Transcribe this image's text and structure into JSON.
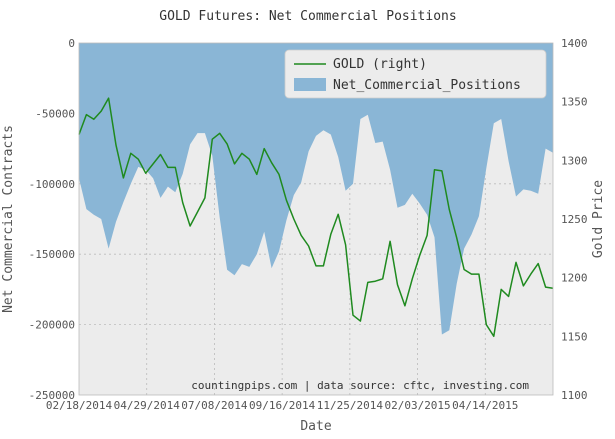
{
  "chart_data": {
    "type": "area",
    "title": "GOLD Futures: Net Commercial Positions",
    "xlabel": "Date",
    "ylabel_left": "Net Commercial Contracts",
    "ylabel_right": "Gold Price",
    "credit": "countingpips.com | data source: cftc, investing.com",
    "grid": true,
    "legend_position": "top-right",
    "x_tick_labels": [
      "02/18/2014",
      "04/29/2014",
      "07/08/2014",
      "09/16/2014",
      "11/25/2014",
      "02/03/2015",
      "04/14/2015"
    ],
    "x_range": [
      "2014-02-18",
      "2015-05-12"
    ],
    "y_left": {
      "min": -250000,
      "max": 0,
      "ticks": [
        0,
        -50000,
        -100000,
        -150000,
        -200000,
        -250000
      ]
    },
    "y_right": {
      "min": 1100,
      "max": 1400,
      "ticks": [
        1400,
        1350,
        1300,
        1250,
        1200,
        1150,
        1100
      ]
    },
    "series": [
      {
        "name": "GOLD (right)",
        "kind": "line",
        "axis": "right",
        "color": "#1f8a1f",
        "points": [
          [
            "2014-02-18",
            1322
          ],
          [
            "2014-02-25",
            1339
          ],
          [
            "2014-03-04",
            1335
          ],
          [
            "2014-03-11",
            1342
          ],
          [
            "2014-03-18",
            1353
          ],
          [
            "2014-03-25",
            1313
          ],
          [
            "2014-04-01",
            1285
          ],
          [
            "2014-04-08",
            1306
          ],
          [
            "2014-04-15",
            1301
          ],
          [
            "2014-04-22",
            1289
          ],
          [
            "2014-04-29",
            1297
          ],
          [
            "2014-05-06",
            1305
          ],
          [
            "2014-05-13",
            1294
          ],
          [
            "2014-05-20",
            1294
          ],
          [
            "2014-05-27",
            1264
          ],
          [
            "2014-06-03",
            1244
          ],
          [
            "2014-06-10",
            1256
          ],
          [
            "2014-06-17",
            1268
          ],
          [
            "2014-06-24",
            1318
          ],
          [
            "2014-07-01",
            1323
          ],
          [
            "2014-07-08",
            1314
          ],
          [
            "2014-07-15",
            1297
          ],
          [
            "2014-07-22",
            1306
          ],
          [
            "2014-07-29",
            1301
          ],
          [
            "2014-08-05",
            1288
          ],
          [
            "2014-08-12",
            1310
          ],
          [
            "2014-08-19",
            1298
          ],
          [
            "2014-08-26",
            1288
          ],
          [
            "2014-09-02",
            1266
          ],
          [
            "2014-09-09",
            1250
          ],
          [
            "2014-09-16",
            1236
          ],
          [
            "2014-09-23",
            1227
          ],
          [
            "2014-09-30",
            1210
          ],
          [
            "2014-10-07",
            1210
          ],
          [
            "2014-10-14",
            1237
          ],
          [
            "2014-10-21",
            1254
          ],
          [
            "2014-10-28",
            1228
          ],
          [
            "2014-11-04",
            1168
          ],
          [
            "2014-11-11",
            1163
          ],
          [
            "2014-11-18",
            1196
          ],
          [
            "2014-11-25",
            1197
          ],
          [
            "2014-12-02",
            1199
          ],
          [
            "2014-12-09",
            1231
          ],
          [
            "2014-12-16",
            1194
          ],
          [
            "2014-12-23",
            1176
          ],
          [
            "2014-12-30",
            1199
          ],
          [
            "2015-01-06",
            1219
          ],
          [
            "2015-01-13",
            1236
          ],
          [
            "2015-01-20",
            1292
          ],
          [
            "2015-01-27",
            1291
          ],
          [
            "2015-02-03",
            1258
          ],
          [
            "2015-02-10",
            1234
          ],
          [
            "2015-02-17",
            1207
          ],
          [
            "2015-02-24",
            1203
          ],
          [
            "2015-03-03",
            1203
          ],
          [
            "2015-03-10",
            1160
          ],
          [
            "2015-03-17",
            1150
          ],
          [
            "2015-03-24",
            1190
          ],
          [
            "2015-03-31",
            1184
          ],
          [
            "2015-04-07",
            1213
          ],
          [
            "2015-04-14",
            1193
          ],
          [
            "2015-04-21",
            1203
          ],
          [
            "2015-04-28",
            1212
          ],
          [
            "2015-05-05",
            1192
          ],
          [
            "2015-05-12",
            1191
          ]
        ]
      },
      {
        "name": "Net_Commercial_Positions",
        "kind": "area",
        "axis": "left",
        "color": "#8ab6d6",
        "points": [
          [
            "2014-02-18",
            -96000
          ],
          [
            "2014-02-25",
            -118000
          ],
          [
            "2014-03-04",
            -122000
          ],
          [
            "2014-03-11",
            -125000
          ],
          [
            "2014-03-18",
            -146000
          ],
          [
            "2014-03-25",
            -127000
          ],
          [
            "2014-04-01",
            -113000
          ],
          [
            "2014-04-08",
            -100000
          ],
          [
            "2014-04-15",
            -88000
          ],
          [
            "2014-04-22",
            -90000
          ],
          [
            "2014-04-29",
            -96000
          ],
          [
            "2014-05-06",
            -110000
          ],
          [
            "2014-05-13",
            -102000
          ],
          [
            "2014-05-20",
            -106000
          ],
          [
            "2014-05-27",
            -93000
          ],
          [
            "2014-06-03",
            -72000
          ],
          [
            "2014-06-10",
            -64000
          ],
          [
            "2014-06-17",
            -64000
          ],
          [
            "2014-06-24",
            -80000
          ],
          [
            "2014-07-01",
            -124000
          ],
          [
            "2014-07-08",
            -161000
          ],
          [
            "2014-07-15",
            -165000
          ],
          [
            "2014-07-22",
            -157000
          ],
          [
            "2014-07-29",
            -159000
          ],
          [
            "2014-08-05",
            -150000
          ],
          [
            "2014-08-12",
            -134000
          ],
          [
            "2014-08-19",
            -160000
          ],
          [
            "2014-08-26",
            -148000
          ],
          [
            "2014-09-02",
            -126000
          ],
          [
            "2014-09-09",
            -108000
          ],
          [
            "2014-09-16",
            -99000
          ],
          [
            "2014-09-23",
            -77000
          ],
          [
            "2014-09-30",
            -66000
          ],
          [
            "2014-10-07",
            -62000
          ],
          [
            "2014-10-14",
            -65000
          ],
          [
            "2014-10-21",
            -81000
          ],
          [
            "2014-10-28",
            -105000
          ],
          [
            "2014-11-04",
            -100000
          ],
          [
            "2014-11-11",
            -54000
          ],
          [
            "2014-11-18",
            -51000
          ],
          [
            "2014-11-25",
            -71000
          ],
          [
            "2014-12-02",
            -70000
          ],
          [
            "2014-12-09",
            -90000
          ],
          [
            "2014-12-16",
            -117000
          ],
          [
            "2014-12-23",
            -115000
          ],
          [
            "2014-12-30",
            -107000
          ],
          [
            "2015-01-06",
            -114000
          ],
          [
            "2015-01-13",
            -122000
          ],
          [
            "2015-01-20",
            -138000
          ],
          [
            "2015-01-27",
            -207000
          ],
          [
            "2015-02-03",
            -204000
          ],
          [
            "2015-02-10",
            -171000
          ],
          [
            "2015-02-17",
            -146000
          ],
          [
            "2015-02-24",
            -136000
          ],
          [
            "2015-03-03",
            -123000
          ],
          [
            "2015-03-10",
            -89000
          ],
          [
            "2015-03-17",
            -57000
          ],
          [
            "2015-03-24",
            -54000
          ],
          [
            "2015-03-31",
            -84000
          ],
          [
            "2015-04-07",
            -109000
          ],
          [
            "2015-04-14",
            -104000
          ],
          [
            "2015-04-21",
            -105000
          ],
          [
            "2015-04-28",
            -107000
          ],
          [
            "2015-05-05",
            -75000
          ],
          [
            "2015-05-12",
            -78000
          ]
        ]
      }
    ]
  }
}
